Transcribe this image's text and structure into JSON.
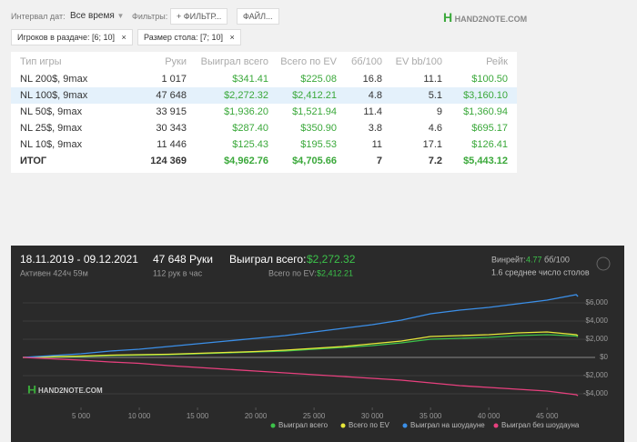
{
  "logo": "HAND2NOTE.COM",
  "toolbar": {
    "date_label": "Интервал дат:",
    "date_value": "Все время",
    "filters_label": "Фильтры:",
    "filter_button": "+ ФИЛЬТР...",
    "file_button": "ФАЙЛ..."
  },
  "chips": [
    "Игроков в раздаче: [6; 10]",
    "Размер стола: [7; 10]"
  ],
  "table": {
    "columns": [
      "Тип игры",
      "Руки",
      "Выиграл всего",
      "Всего по EV",
      "бб/100",
      "EV bb/100",
      "Рейк"
    ],
    "rows": [
      [
        "NL 200$, 9max",
        "1 017",
        "$341.41",
        "$225.08",
        "16.8",
        "11.1",
        "$100.50"
      ],
      [
        "NL 100$, 9max",
        "47 648",
        "$2,272.32",
        "$2,412.21",
        "4.8",
        "5.1",
        "$3,160.10"
      ],
      [
        "NL 50$, 9max",
        "33 915",
        "$1,936.20",
        "$1,521.94",
        "11.4",
        "9",
        "$1,360.94"
      ],
      [
        "NL 25$, 9max",
        "30 343",
        "$287.40",
        "$350.90",
        "3.8",
        "4.6",
        "$695.17"
      ],
      [
        "NL 10$, 9max",
        "11 446",
        "$125.43",
        "$195.53",
        "11",
        "17.1",
        "$126.41"
      ]
    ],
    "total": [
      "ИТОГ",
      "124 369",
      "$4,962.76",
      "$4,705.66",
      "7",
      "7.2",
      "$5,443.12"
    ]
  },
  "chart_panel": {
    "dates": "18.11.2019 - 09.12.2021",
    "active": "Активен 424ч 59м",
    "hands": "47 648 Руки",
    "per_hour": "112 рук в час",
    "won_label": "Выиграл всего:",
    "won_value": "$2,272.32",
    "ev_label": "Всего по EV:",
    "ev_value": "$2,412.21",
    "winrate_label": "Винрейт:",
    "winrate_value": "4.77",
    "winrate_unit": "бб/100",
    "tables": "1.6 среднее число столов"
  },
  "chart_data": {
    "type": "line",
    "x": [
      0,
      2500,
      5000,
      7500,
      10000,
      12500,
      15000,
      17500,
      20000,
      22500,
      25000,
      27500,
      30000,
      32500,
      35000,
      37500,
      40000,
      42500,
      45000,
      47500,
      47648
    ],
    "series": [
      {
        "name": "Выиграл всего",
        "color": "#3cc24a",
        "values": [
          0,
          50,
          100,
          200,
          250,
          300,
          400,
          500,
          600,
          700,
          900,
          1100,
          1300,
          1600,
          2000,
          2100,
          2200,
          2400,
          2500,
          2350,
          2272
        ]
      },
      {
        "name": "Всего по EV",
        "color": "#e8e83a",
        "values": [
          0,
          80,
          150,
          250,
          300,
          350,
          450,
          550,
          650,
          800,
          1000,
          1200,
          1500,
          1800,
          2300,
          2400,
          2500,
          2700,
          2800,
          2500,
          2412
        ]
      },
      {
        "name": "Выиграл на шоудауне",
        "color": "#3b8fe8",
        "values": [
          0,
          200,
          400,
          700,
          900,
          1200,
          1500,
          1800,
          2100,
          2400,
          2800,
          3200,
          3600,
          4100,
          4800,
          5200,
          5500,
          5900,
          6300,
          6900,
          6700
        ]
      },
      {
        "name": "Выиграл без шоудауна",
        "color": "#e8407e",
        "values": [
          0,
          -150,
          -300,
          -500,
          -650,
          -900,
          -1100,
          -1300,
          -1500,
          -1700,
          -1900,
          -2100,
          -2300,
          -2500,
          -2800,
          -3100,
          -3300,
          -3500,
          -3700,
          -4100,
          -4200
        ]
      }
    ],
    "xlim": [
      0,
      48500
    ],
    "xticks": [
      {
        "value": 5000,
        "label": "5 000"
      },
      {
        "value": 10000,
        "label": "10 000"
      },
      {
        "value": 15000,
        "label": "15 000"
      },
      {
        "value": 20000,
        "label": "20 000"
      },
      {
        "value": 25000,
        "label": "25 000"
      },
      {
        "value": 30000,
        "label": "30 000"
      },
      {
        "value": 35000,
        "label": "35 000"
      },
      {
        "value": 40000,
        "label": "40 000"
      },
      {
        "value": 45000,
        "label": "45 000"
      }
    ],
    "ylim": [
      -5500,
      7500
    ],
    "yticks": [
      {
        "value": 6000,
        "label": "$6,000"
      },
      {
        "value": 4000,
        "label": "$4,000"
      },
      {
        "value": 2000,
        "label": "$2,000"
      },
      {
        "value": 0,
        "label": "$0"
      },
      {
        "value": -2000,
        "label": "-$2,000"
      },
      {
        "value": -4000,
        "label": "-$4,000"
      }
    ],
    "grid": true
  }
}
